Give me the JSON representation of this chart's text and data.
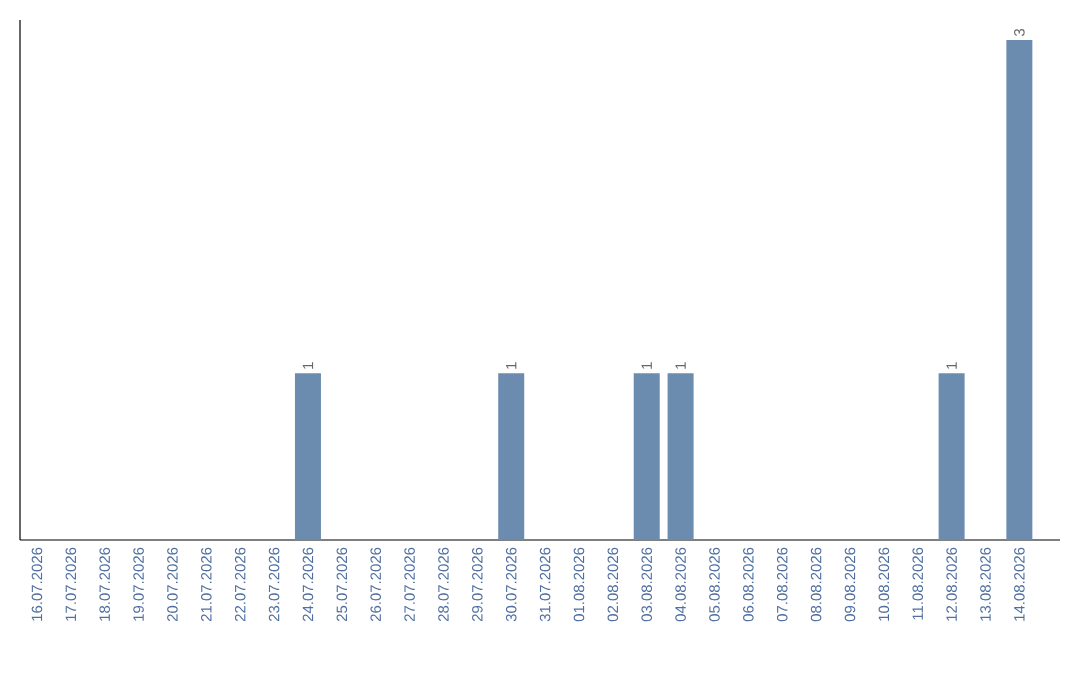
{
  "chart_data": {
    "type": "bar",
    "color": "#6b8cae",
    "categories": [
      "16.07.2026",
      "17.07.2026",
      "18.07.2026",
      "19.07.2026",
      "20.07.2026",
      "21.07.2026",
      "22.07.2026",
      "23.07.2026",
      "24.07.2026",
      "25.07.2026",
      "26.07.2026",
      "27.07.2026",
      "28.07.2026",
      "29.07.2026",
      "30.07.2026",
      "31.07.2026",
      "01.08.2026",
      "02.08.2026",
      "03.08.2026",
      "04.08.2026",
      "05.08.2026",
      "06.08.2026",
      "07.08.2026",
      "08.08.2026",
      "09.08.2026",
      "10.08.2026",
      "11.08.2026",
      "12.08.2026",
      "13.08.2026",
      "14.08.2026"
    ],
    "values": [
      0,
      0,
      0,
      0,
      0,
      0,
      0,
      0,
      1,
      0,
      0,
      0,
      0,
      0,
      1,
      0,
      0,
      0,
      1,
      1,
      0,
      0,
      0,
      0,
      0,
      0,
      0,
      1,
      0,
      3
    ],
    "value_labels": [
      null,
      null,
      null,
      null,
      null,
      null,
      null,
      null,
      "1",
      null,
      null,
      null,
      null,
      null,
      "1",
      null,
      null,
      null,
      "1",
      "1",
      null,
      null,
      null,
      null,
      null,
      null,
      null,
      "1",
      null,
      "3"
    ],
    "data_labels": false
  }
}
